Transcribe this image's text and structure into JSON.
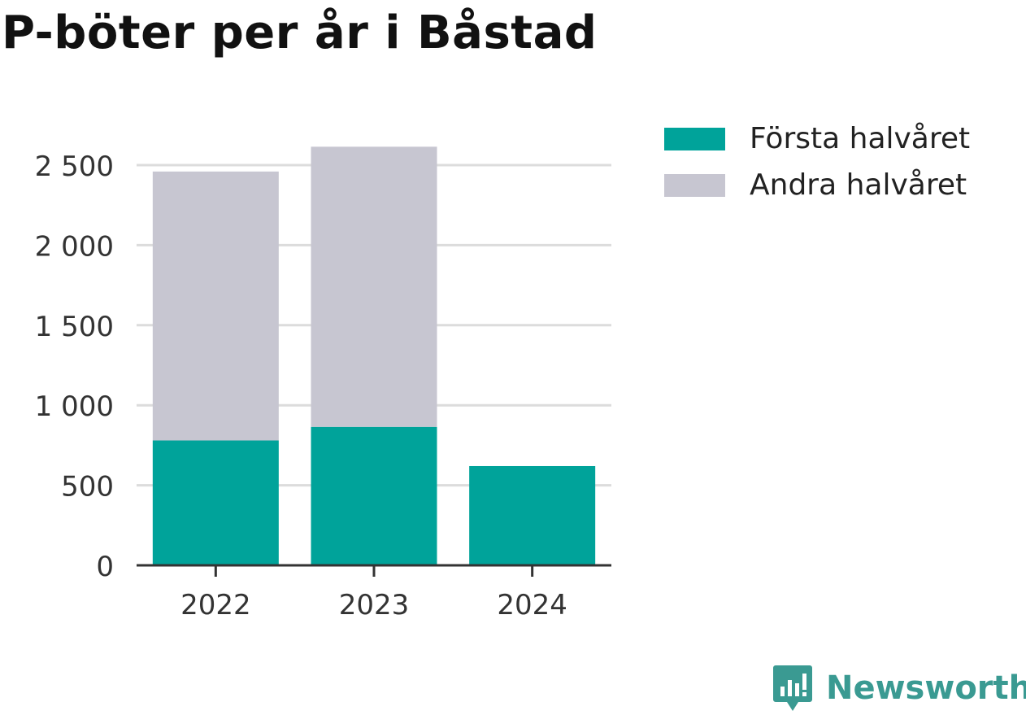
{
  "title": "P-böter per år i Båstad",
  "chart_data": {
    "type": "bar",
    "stacked": true,
    "categories": [
      "2022",
      "2023",
      "2024"
    ],
    "series": [
      {
        "name": "Första halvåret",
        "values": [
          780,
          865,
          620
        ],
        "color": "#00a39a"
      },
      {
        "name": "Andra halvåret",
        "values": [
          1680,
          1750,
          0
        ],
        "color": "#c7c6d1"
      }
    ],
    "ylim": [
      0,
      2500
    ],
    "yticks": [
      0,
      500,
      1000,
      1500,
      2000,
      2500
    ],
    "ytick_labels": [
      "0",
      "500",
      "1 000",
      "1 500",
      "2 000",
      "2 500"
    ],
    "grid": true,
    "legend_position": "top-right"
  },
  "brand": {
    "name": "Newsworthy",
    "icon": "newsworthy-logo-icon"
  }
}
